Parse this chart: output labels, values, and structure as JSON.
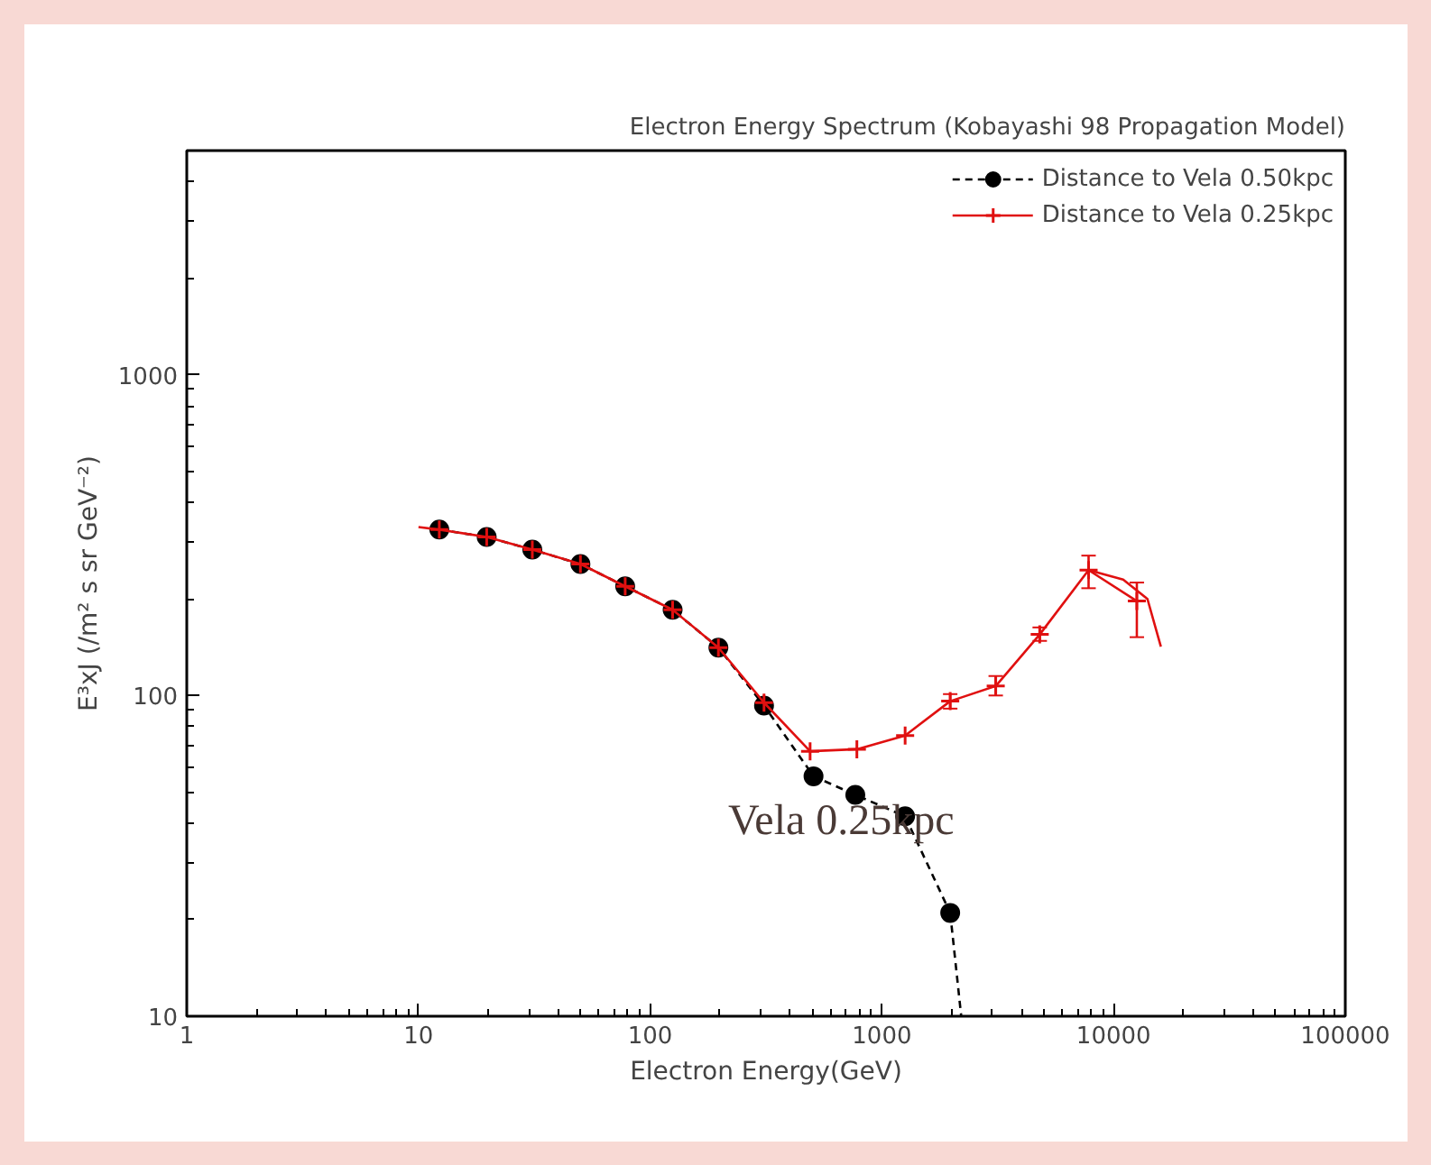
{
  "chart_data": {
    "type": "line",
    "title": "Electron Energy Spectrum (Kobayashi 98 Propagation Model)",
    "xlabel": "Electron Energy(GeV)",
    "ylabel": "E³xJ (/m² s sr GeV⁻²)",
    "log": "xy",
    "xlim": [
      1,
      100000
    ],
    "ylim": [
      10,
      5000
    ],
    "xticks": [
      1,
      10,
      100,
      1000,
      10000,
      100000
    ],
    "yticks": [
      {
        "value": 10,
        "label": "10"
      },
      {
        "value": 100,
        "label": "100"
      },
      {
        "value": 1000,
        "label": "1000"
      }
    ],
    "grid": false,
    "legend": "top right",
    "annotations": [
      "Vela 0.25kpc"
    ],
    "series": [
      {
        "name": "Distance to Vela 0.50kpc",
        "color": "#000000",
        "marker": "circle",
        "line_style": "dashed",
        "x": [
          12.3,
          19.7,
          31,
          50,
          78,
          125,
          197,
          310,
          507,
          768,
          1260,
          1972
        ],
        "values": [
          329,
          312,
          285,
          257,
          219,
          185,
          141,
          93,
          56,
          49,
          42,
          21
        ]
      },
      {
        "name": "Distance to Vela 0.25kpc",
        "color": "#e01010",
        "marker": "cross",
        "line_style": "solid",
        "x": [
          12.3,
          19.7,
          31,
          50,
          78,
          125,
          197,
          310,
          490,
          780,
          1260,
          1972,
          3100,
          4800,
          7800,
          12600
        ],
        "values": [
          329,
          312,
          285,
          257,
          219,
          185,
          141,
          95,
          67,
          68,
          75,
          96,
          107,
          155,
          246,
          197
        ],
        "errors": [
          null,
          null,
          null,
          null,
          null,
          null,
          null,
          null,
          null,
          null,
          null,
          5,
          [
            100,
            115
          ],
          [
            148,
            163
          ],
          [
            216,
            273
          ],
          [
            152,
            225
          ]
        ]
      },
      {
        "color": "#000000",
        "marker": "none",
        "line_style": "dashed",
        "x": [
          1972,
          2200
        ],
        "values": [
          21,
          10
        ]
      },
      {
        "color": "#e01010",
        "marker": "none",
        "line_style": "solid",
        "x": [
          10,
          12.3
        ],
        "values": [
          335,
          329
        ]
      },
      {
        "color": "#e01010",
        "marker": "none",
        "line_style": "solid",
        "x": [
          7800,
          11000,
          14000,
          16000
        ],
        "values": [
          246,
          230,
          200,
          142
        ]
      }
    ]
  }
}
